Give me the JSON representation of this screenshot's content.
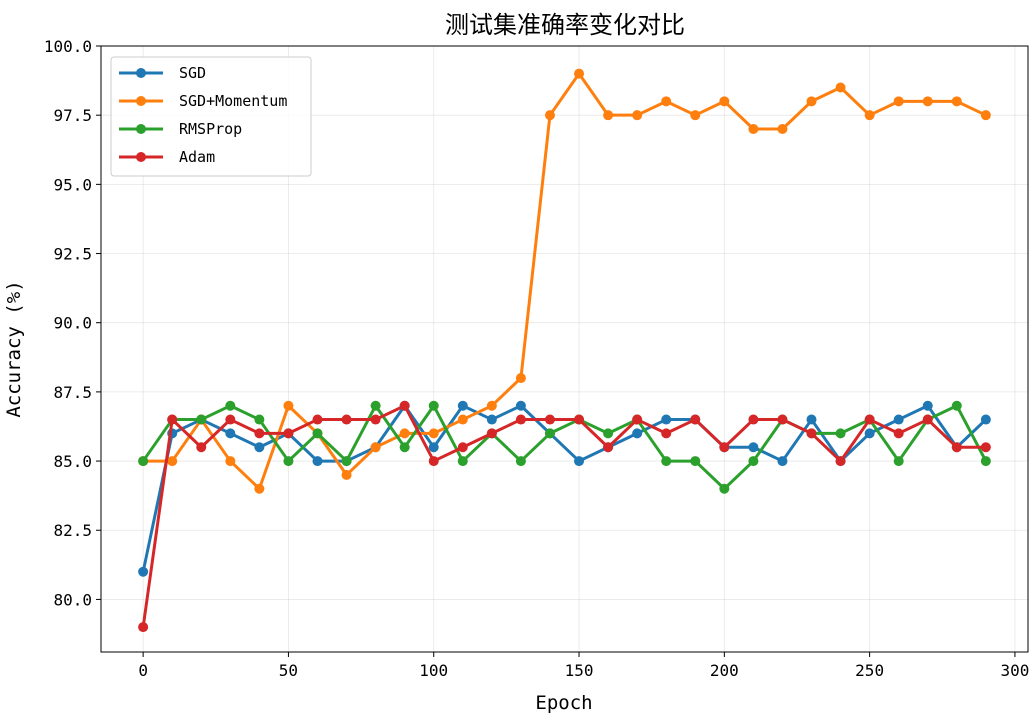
{
  "chart_data": {
    "type": "line",
    "title": "测试集准确率变化对比",
    "xlabel": "Epoch",
    "ylabel": "Accuracy (%)",
    "xlim": [
      -14.5,
      304.5
    ],
    "ylim": [
      78.1,
      100.0
    ],
    "xticks": [
      0,
      50,
      100,
      150,
      200,
      250,
      300
    ],
    "xtick_labels": [
      "0",
      "50",
      "100",
      "150",
      "200",
      "250",
      "300"
    ],
    "yticks": [
      80.0,
      82.5,
      85.0,
      87.5,
      90.0,
      92.5,
      95.0,
      97.5,
      100.0
    ],
    "ytick_labels": [
      "80.0",
      "82.5",
      "85.0",
      "87.5",
      "90.0",
      "92.5",
      "95.0",
      "97.5",
      "100.0"
    ],
    "grid": true,
    "legend_position": "top-left",
    "x": [
      0,
      10,
      20,
      30,
      40,
      50,
      60,
      70,
      80,
      90,
      100,
      110,
      120,
      130,
      140,
      150,
      160,
      170,
      180,
      190,
      200,
      210,
      220,
      230,
      240,
      250,
      260,
      270,
      280,
      290
    ],
    "series": [
      {
        "name": "SGD",
        "color": "#1f77b4",
        "values": [
          81.0,
          86.0,
          86.5,
          86.0,
          85.5,
          86.0,
          85.0,
          85.0,
          85.5,
          87.0,
          85.5,
          87.0,
          86.5,
          87.0,
          86.0,
          85.0,
          85.5,
          86.0,
          86.5,
          86.5,
          85.5,
          85.5,
          85.0,
          86.5,
          85.0,
          86.0,
          86.5,
          87.0,
          85.5,
          86.5
        ]
      },
      {
        "name": "SGD+Momentum",
        "color": "#ff7f0e",
        "values": [
          85.0,
          85.0,
          86.5,
          85.0,
          84.0,
          87.0,
          86.0,
          84.5,
          85.5,
          86.0,
          86.0,
          86.5,
          87.0,
          88.0,
          97.5,
          99.0,
          97.5,
          97.5,
          98.0,
          97.5,
          98.0,
          97.0,
          97.0,
          98.0,
          98.5,
          97.5,
          98.0,
          98.0,
          98.0,
          97.5
        ]
      },
      {
        "name": "RMSProp",
        "color": "#2ca02c",
        "values": [
          85.0,
          86.5,
          86.5,
          87.0,
          86.5,
          85.0,
          86.0,
          85.0,
          87.0,
          85.5,
          87.0,
          85.0,
          86.0,
          85.0,
          86.0,
          86.5,
          86.0,
          86.5,
          85.0,
          85.0,
          84.0,
          85.0,
          86.5,
          86.0,
          86.0,
          86.5,
          85.0,
          86.5,
          87.0,
          85.0
        ]
      },
      {
        "name": "Adam",
        "color": "#d62728",
        "values": [
          79.0,
          86.5,
          85.5,
          86.5,
          86.0,
          86.0,
          86.5,
          86.5,
          86.5,
          87.0,
          85.0,
          85.5,
          86.0,
          86.5,
          86.5,
          86.5,
          85.5,
          86.5,
          86.0,
          86.5,
          85.5,
          86.5,
          86.5,
          86.0,
          85.0,
          86.5,
          86.0,
          86.5,
          85.5,
          85.5
        ]
      }
    ]
  }
}
